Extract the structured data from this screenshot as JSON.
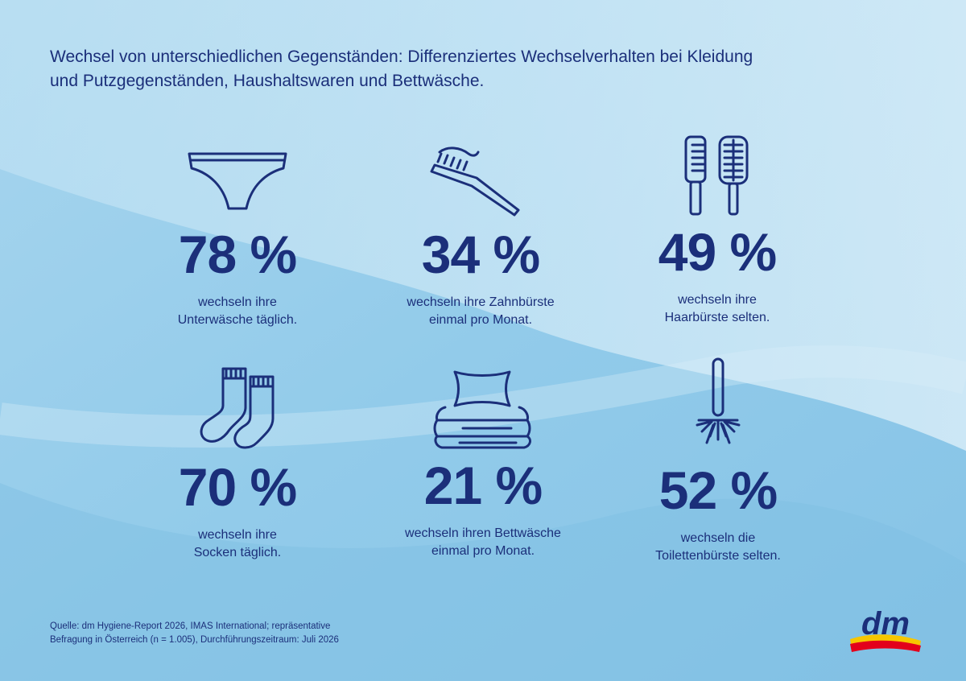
{
  "title": {
    "line1": "Wechsel von unterschiedlichen Gegenständen: Differenziertes Wechselverhalten bei Kleidung",
    "line2": "und Putzgegenständen, Haushaltswaren und Bettwäsche."
  },
  "stats": [
    {
      "icon": "underwear-icon",
      "value": "78 %",
      "line1": "wechseln ihre",
      "line2": "Unterwäsche täglich."
    },
    {
      "icon": "toothbrush-icon",
      "value": "34 %",
      "line1": "wechseln ihre Zahnbürste",
      "line2": "einmal pro Monat."
    },
    {
      "icon": "hairbrush-icon",
      "value": "49 %",
      "line1": "wechseln ihre",
      "line2": "Haarbürste selten."
    },
    {
      "icon": "socks-icon",
      "value": "70 %",
      "line1": "wechseln ihre",
      "line2": "Socken täglich."
    },
    {
      "icon": "pillow-bedding-icon",
      "value": "21 %",
      "line1": "wechseln ihren Bettwäsche",
      "line2": "einmal pro Monat."
    },
    {
      "icon": "toilet-brush-icon",
      "value": "52 %",
      "line1": "wechseln die",
      "line2": "Toilettenbürste selten."
    }
  ],
  "source": {
    "line1": "Quelle: dm Hygiene-Report 2026, IMAS International; repräsentative",
    "line2": "Befragung in Österreich (n = 1.005), Durchführungszeitraum: Juli 2026"
  },
  "logo": {
    "text": "dm"
  },
  "colors": {
    "text": "#1b2f7a",
    "background_light": "#cde9f6",
    "background_dark": "#7fc0e3",
    "logo_yellow": "#f7c600",
    "logo_red": "#e3001b"
  }
}
